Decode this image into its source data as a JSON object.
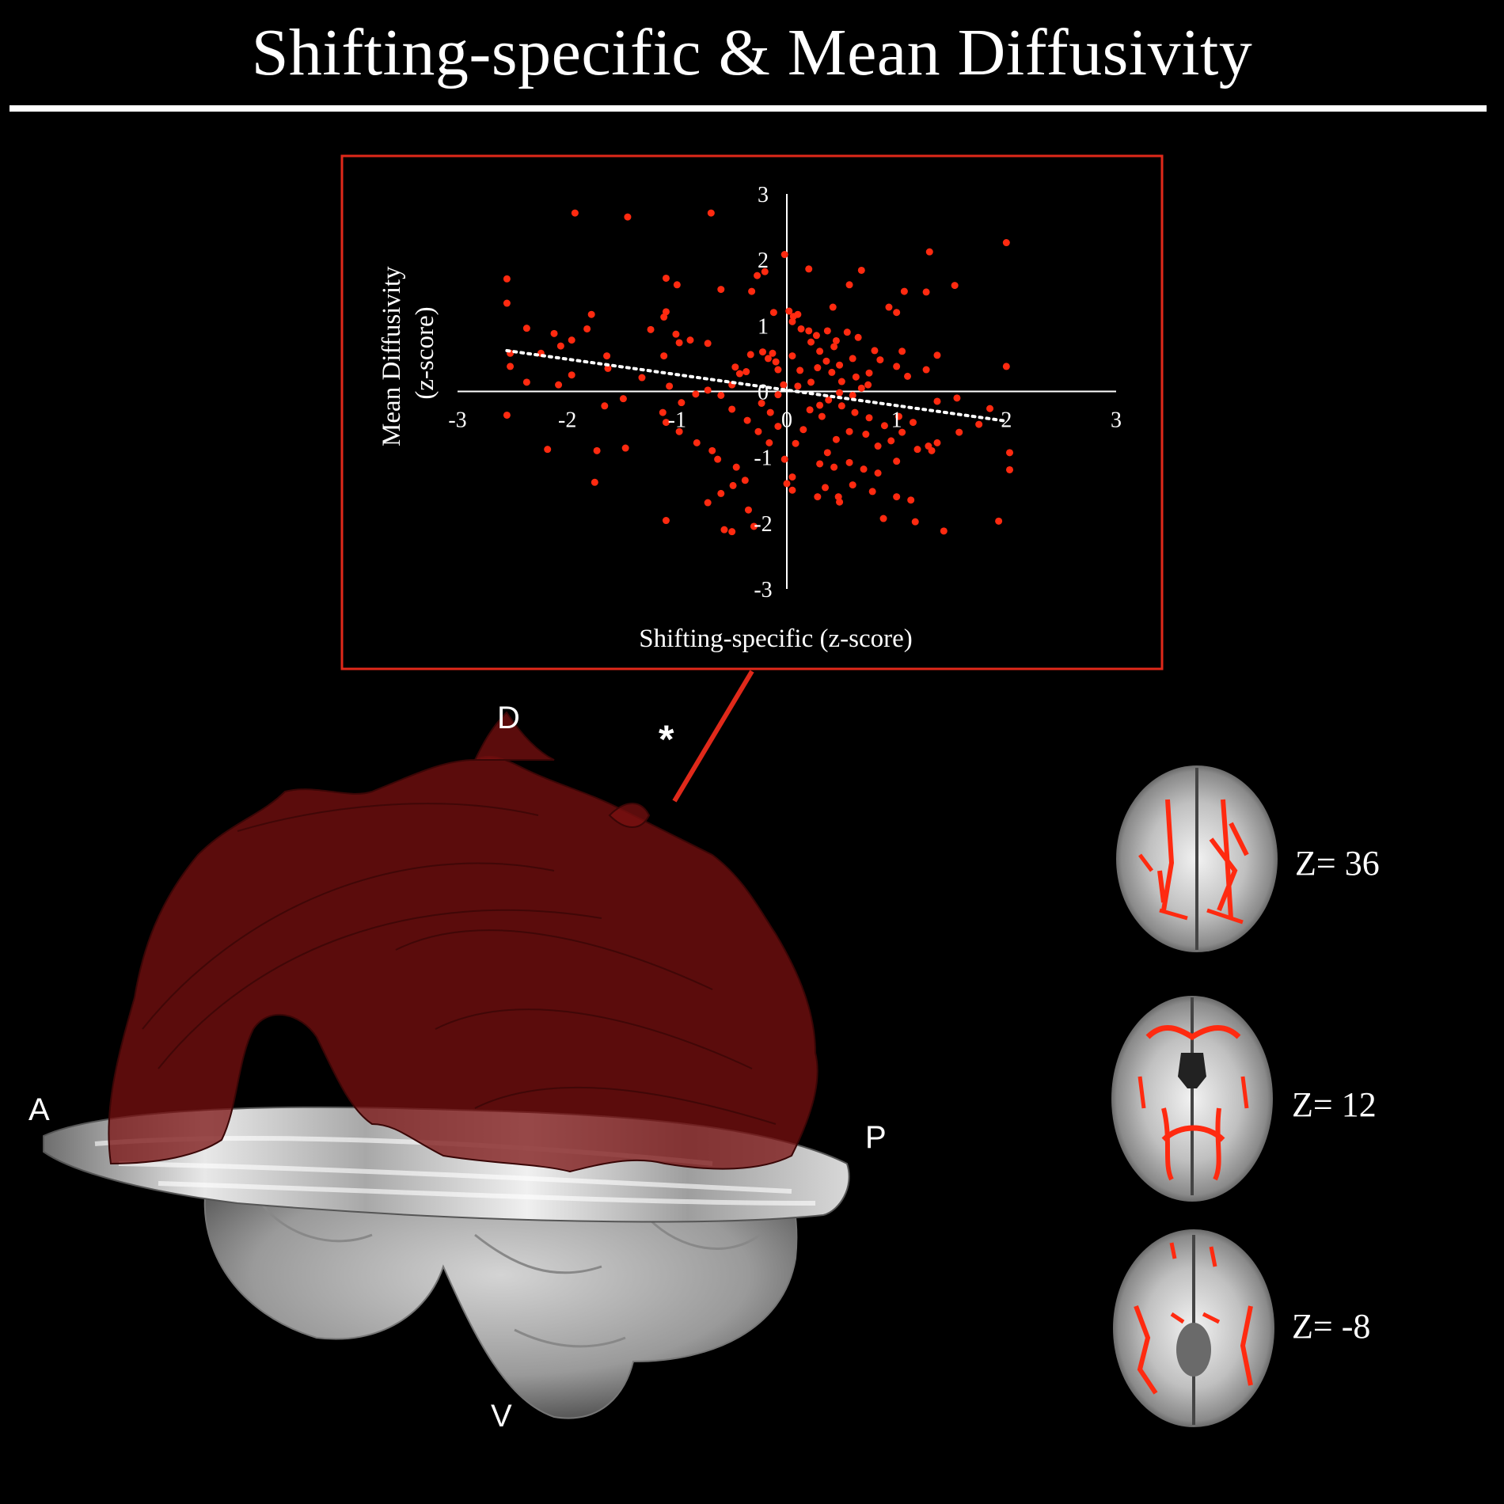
{
  "title": "Shifting-specific & Mean Diffusivity",
  "colors": {
    "background": "#000000",
    "accent": "#ff2a10",
    "tract": "#7a1010",
    "frame": "#e0291a"
  },
  "chart_data": {
    "type": "scatter",
    "xlabel": "Shifting-specific (z-score)",
    "ylabel_lines": [
      "Mean Diffusivity",
      "(z-score)"
    ],
    "xlim": [
      -3,
      3
    ],
    "ylim": [
      -3,
      3
    ],
    "x_ticks": [
      "-3",
      "-2",
      "-1",
      "0",
      "1",
      "2",
      "3"
    ],
    "y_ticks": [
      "3",
      "2",
      "1",
      "0",
      "-1",
      "-2",
      "-3"
    ],
    "trendline": {
      "style": "dotted",
      "color": "#ffffff",
      "x": [
        -2.55,
        2.0
      ],
      "y": [
        0.62,
        -0.45
      ]
    },
    "points": [
      [
        -1.93,
        2.71
      ],
      [
        -1.45,
        2.65
      ],
      [
        -0.69,
        2.71
      ],
      [
        -0.02,
        2.08
      ],
      [
        2.0,
        2.26
      ],
      [
        1.3,
        2.12
      ],
      [
        0.2,
        1.86
      ],
      [
        0.68,
        1.84
      ],
      [
        -2.55,
        1.71
      ],
      [
        -2.55,
        1.34
      ],
      [
        -1.1,
        1.72
      ],
      [
        -1.0,
        1.62
      ],
      [
        -0.6,
        1.55
      ],
      [
        -0.32,
        1.52
      ],
      [
        -0.27,
        1.76
      ],
      [
        -0.2,
        1.82
      ],
      [
        0.57,
        1.62
      ],
      [
        1.07,
        1.52
      ],
      [
        1.27,
        1.51
      ],
      [
        1.53,
        1.61
      ],
      [
        0.93,
        1.28
      ],
      [
        1.0,
        1.2
      ],
      [
        0.42,
        1.28
      ],
      [
        0.02,
        1.22
      ],
      [
        0.1,
        1.17
      ],
      [
        0.06,
        1.14
      ],
      [
        -0.12,
        1.2
      ],
      [
        -1.12,
        1.13
      ],
      [
        -1.1,
        1.21
      ],
      [
        -1.78,
        1.17
      ],
      [
        -1.82,
        0.95
      ],
      [
        -2.37,
        0.96
      ],
      [
        -2.12,
        0.88
      ],
      [
        -2.06,
        0.69
      ],
      [
        -1.96,
        0.78
      ],
      [
        -2.24,
        0.58
      ],
      [
        -2.52,
        0.58
      ],
      [
        -2.52,
        0.38
      ],
      [
        -1.64,
        0.54
      ],
      [
        -1.96,
        0.25
      ],
      [
        -2.08,
        0.1
      ],
      [
        -2.37,
        0.14
      ],
      [
        -1.63,
        0.35
      ],
      [
        -1.24,
        0.94
      ],
      [
        -1.01,
        0.87
      ],
      [
        -0.98,
        0.74
      ],
      [
        -0.88,
        0.78
      ],
      [
        -1.12,
        0.54
      ],
      [
        -0.72,
        0.73
      ],
      [
        -0.33,
        0.56
      ],
      [
        -0.47,
        0.37
      ],
      [
        -0.37,
        0.3
      ],
      [
        -0.22,
        0.6
      ],
      [
        -0.13,
        0.58
      ],
      [
        -0.17,
        0.5
      ],
      [
        -0.1,
        0.45
      ],
      [
        -0.08,
        0.33
      ],
      [
        0.05,
        1.06
      ],
      [
        0.13,
        0.95
      ],
      [
        0.2,
        0.92
      ],
      [
        0.27,
        0.85
      ],
      [
        0.37,
        0.92
      ],
      [
        0.45,
        0.77
      ],
      [
        0.55,
        0.9
      ],
      [
        0.65,
        0.82
      ],
      [
        0.43,
        0.68
      ],
      [
        0.3,
        0.61
      ],
      [
        0.22,
        0.75
      ],
      [
        0.36,
        0.46
      ],
      [
        0.48,
        0.4
      ],
      [
        0.6,
        0.5
      ],
      [
        0.8,
        0.62
      ],
      [
        0.85,
        0.48
      ],
      [
        1.0,
        0.38
      ],
      [
        1.1,
        0.23
      ],
      [
        1.27,
        0.33
      ],
      [
        1.37,
        0.55
      ],
      [
        1.05,
        0.61
      ],
      [
        0.75,
        0.28
      ],
      [
        0.63,
        0.22
      ],
      [
        0.5,
        0.15
      ],
      [
        0.41,
        0.29
      ],
      [
        0.28,
        0.36
      ],
      [
        0.22,
        0.14
      ],
      [
        0.12,
        0.32
      ],
      [
        0.05,
        0.54
      ],
      [
        2.0,
        0.38
      ],
      [
        1.37,
        -0.15
      ],
      [
        1.55,
        -0.1
      ],
      [
        0.74,
        0.1
      ],
      [
        0.68,
        0.05
      ],
      [
        0.6,
        -0.06
      ],
      [
        0.48,
        -0.02
      ],
      [
        0.38,
        -0.13
      ],
      [
        0.3,
        -0.21
      ],
      [
        0.21,
        -0.28
      ],
      [
        0.32,
        -0.38
      ],
      [
        0.5,
        -0.22
      ],
      [
        0.62,
        -0.32
      ],
      [
        0.75,
        -0.4
      ],
      [
        0.89,
        -0.52
      ],
      [
        1.02,
        -0.38
      ],
      [
        1.15,
        -0.47
      ],
      [
        1.05,
        -0.62
      ],
      [
        0.95,
        -0.75
      ],
      [
        0.83,
        -0.83
      ],
      [
        0.72,
        -0.65
      ],
      [
        0.57,
        -0.61
      ],
      [
        0.45,
        -0.73
      ],
      [
        0.37,
        -0.93
      ],
      [
        0.3,
        -1.1
      ],
      [
        0.43,
        -1.15
      ],
      [
        0.57,
        -1.08
      ],
      [
        0.7,
        -1.18
      ],
      [
        0.83,
        -1.24
      ],
      [
        1.0,
        -1.06
      ],
      [
        1.19,
        -0.88
      ],
      [
        1.29,
        -0.83
      ],
      [
        1.37,
        -0.78
      ],
      [
        1.32,
        -0.9
      ],
      [
        1.57,
        -0.62
      ],
      [
        1.75,
        -0.5
      ],
      [
        1.85,
        -0.26
      ],
      [
        2.03,
        -0.93
      ],
      [
        2.03,
        -1.19
      ],
      [
        0.15,
        -0.58
      ],
      [
        0.08,
        -0.79
      ],
      [
        -0.02,
        -1.03
      ],
      [
        0.0,
        -1.4
      ],
      [
        0.05,
        -1.3
      ],
      [
        0.05,
        -1.5
      ],
      [
        0.28,
        -1.6
      ],
      [
        0.35,
        -1.46
      ],
      [
        0.47,
        -1.6
      ],
      [
        0.48,
        -1.68
      ],
      [
        0.6,
        -1.42
      ],
      [
        0.78,
        -1.52
      ],
      [
        1.0,
        -1.6
      ],
      [
        1.13,
        -1.65
      ],
      [
        1.17,
        -1.98
      ],
      [
        0.88,
        -1.93
      ],
      [
        1.43,
        -2.12
      ],
      [
        1.93,
        -1.97
      ],
      [
        -1.1,
        -1.96
      ],
      [
        -0.5,
        -2.13
      ],
      [
        -0.57,
        -2.1
      ],
      [
        -0.3,
        -2.05
      ],
      [
        -0.35,
        -1.8
      ],
      [
        -0.72,
        -1.69
      ],
      [
        -0.6,
        -1.55
      ],
      [
        -0.49,
        -1.43
      ],
      [
        -0.38,
        -1.35
      ],
      [
        -0.46,
        -1.15
      ],
      [
        -0.63,
        -1.03
      ],
      [
        -0.68,
        -0.9
      ],
      [
        -0.82,
        -0.78
      ],
      [
        -0.98,
        -0.61
      ],
      [
        -1.1,
        -0.47
      ],
      [
        -1.13,
        -0.32
      ],
      [
        -0.96,
        -0.17
      ],
      [
        -0.83,
        -0.04
      ],
      [
        -0.72,
        0.02
      ],
      [
        -0.6,
        -0.06
      ],
      [
        -0.5,
        -0.27
      ],
      [
        -0.36,
        -0.44
      ],
      [
        -0.26,
        -0.61
      ],
      [
        -0.16,
        -0.78
      ],
      [
        -0.08,
        -0.53
      ],
      [
        -0.15,
        -0.32
      ],
      [
        -0.23,
        -0.18
      ],
      [
        -0.08,
        -0.05
      ],
      [
        0.1,
        0.08
      ],
      [
        -0.03,
        0.1
      ],
      [
        -0.5,
        0.1
      ],
      [
        -0.43,
        0.27
      ],
      [
        -1.07,
        0.08
      ],
      [
        -1.32,
        0.21
      ],
      [
        -1.49,
        -0.11
      ],
      [
        -1.66,
        -0.22
      ],
      [
        -1.47,
        -0.86
      ],
      [
        -1.73,
        -0.9
      ],
      [
        -1.75,
        -1.38
      ],
      [
        -2.18,
        -0.88
      ],
      [
        -2.55,
        -0.36
      ]
    ]
  },
  "brain_labels": {
    "anterior": "A",
    "posterior": "P",
    "dorsal": "D",
    "ventral": "V",
    "significance": "*"
  },
  "slices": [
    {
      "label": "Z= 36"
    },
    {
      "label": "Z= 12"
    },
    {
      "label": "Z= -8"
    }
  ]
}
